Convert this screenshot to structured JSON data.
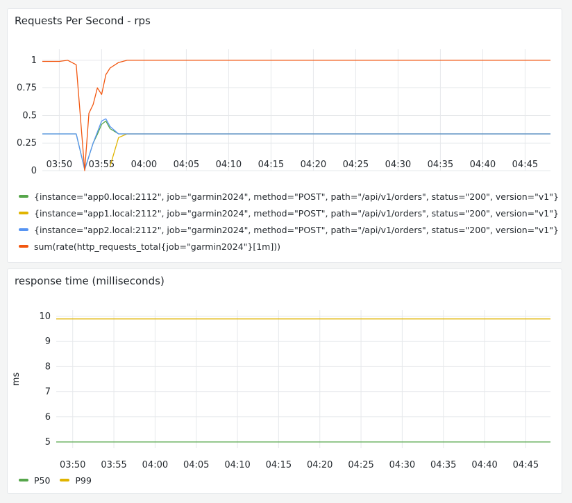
{
  "chart_data": [
    {
      "type": "line",
      "title": "Requests Per Second - rps",
      "xlabel": "",
      "ylabel": "",
      "x_ticks": [
        "03:50",
        "03:55",
        "04:00",
        "04:05",
        "04:10",
        "04:15",
        "04:20",
        "04:25",
        "04:30",
        "04:35",
        "04:40",
        "04:45"
      ],
      "y_ticks": [
        "0",
        "0.25",
        "0.5",
        "0.75",
        "1"
      ],
      "xlim": [
        "03:48",
        "04:48"
      ],
      "ylim": [
        0,
        1.1
      ],
      "grid": true,
      "legend_position": "bottom",
      "series": [
        {
          "name": "{instance=\"app0.local:2112\", job=\"garmin2024\", method=\"POST\", path=\"/api/v1/orders\", status=\"200\", version=\"v1\"}",
          "color": "#56a64b",
          "points": [
            [
              "03:48",
              0.333
            ],
            [
              "03:52",
              0.333
            ],
            [
              "03:53",
              0.01
            ],
            [
              "03:54",
              0.25
            ],
            [
              "03:54.5",
              0.33
            ],
            [
              "03:55",
              0.42
            ],
            [
              "03:55.5",
              0.45
            ],
            [
              "03:56",
              0.38
            ],
            [
              "03:57",
              0.333
            ],
            [
              "04:48",
              0.333
            ]
          ]
        },
        {
          "name": "{instance=\"app1.local:2112\", job=\"garmin2024\", method=\"POST\", path=\"/api/v1/orders\", status=\"200\", version=\"v1\"}",
          "color": "#e0b400",
          "points": [
            [
              "03:56",
              0.04
            ],
            [
              "03:57",
              0.3
            ],
            [
              "03:58",
              0.333
            ],
            [
              "04:48",
              0.333
            ]
          ]
        },
        {
          "name": "{instance=\"app2.local:2112\", job=\"garmin2024\", method=\"POST\", path=\"/api/v1/orders\", status=\"200\", version=\"v1\"}",
          "color": "#5794f2",
          "points": [
            [
              "03:48",
              0.333
            ],
            [
              "03:52",
              0.333
            ],
            [
              "03:53",
              0.01
            ],
            [
              "03:54",
              0.25
            ],
            [
              "03:54.5",
              0.35
            ],
            [
              "03:55",
              0.45
            ],
            [
              "03:55.5",
              0.47
            ],
            [
              "03:56",
              0.4
            ],
            [
              "03:57",
              0.333
            ],
            [
              "04:48",
              0.333
            ]
          ]
        },
        {
          "name": "sum(rate(http_requests_total{job=\"garmin2024\"}[1m]))",
          "color": "#f2560f",
          "points": [
            [
              "03:48",
              0.99
            ],
            [
              "03:50",
              0.99
            ],
            [
              "03:51",
              1.0
            ],
            [
              "03:52",
              0.96
            ],
            [
              "03:53",
              0.0
            ],
            [
              "03:53.5",
              0.52
            ],
            [
              "03:54",
              0.6
            ],
            [
              "03:54.5",
              0.75
            ],
            [
              "03:55",
              0.69
            ],
            [
              "03:55.5",
              0.87
            ],
            [
              "03:56",
              0.93
            ],
            [
              "03:57",
              0.98
            ],
            [
              "03:58",
              1.0
            ],
            [
              "04:48",
              1.0
            ]
          ]
        }
      ]
    },
    {
      "type": "line",
      "title": "response time (milliseconds)",
      "xlabel": "",
      "ylabel": "ms",
      "x_ticks": [
        "03:50",
        "03:55",
        "04:00",
        "04:05",
        "04:10",
        "04:15",
        "04:20",
        "04:25",
        "04:30",
        "04:35",
        "04:40",
        "04:45"
      ],
      "y_ticks": [
        "5",
        "6",
        "7",
        "8",
        "9",
        "10"
      ],
      "xlim": [
        "03:48",
        "04:48"
      ],
      "ylim": [
        4.75,
        10.25
      ],
      "grid": true,
      "legend_position": "bottom",
      "series": [
        {
          "name": "P50",
          "color": "#56a64b",
          "points": [
            [
              "03:48",
              5.0
            ],
            [
              "04:48",
              5.0
            ]
          ]
        },
        {
          "name": "P99",
          "color": "#e0b400",
          "points": [
            [
              "03:48",
              9.9
            ],
            [
              "04:48",
              9.9
            ]
          ]
        }
      ]
    }
  ]
}
